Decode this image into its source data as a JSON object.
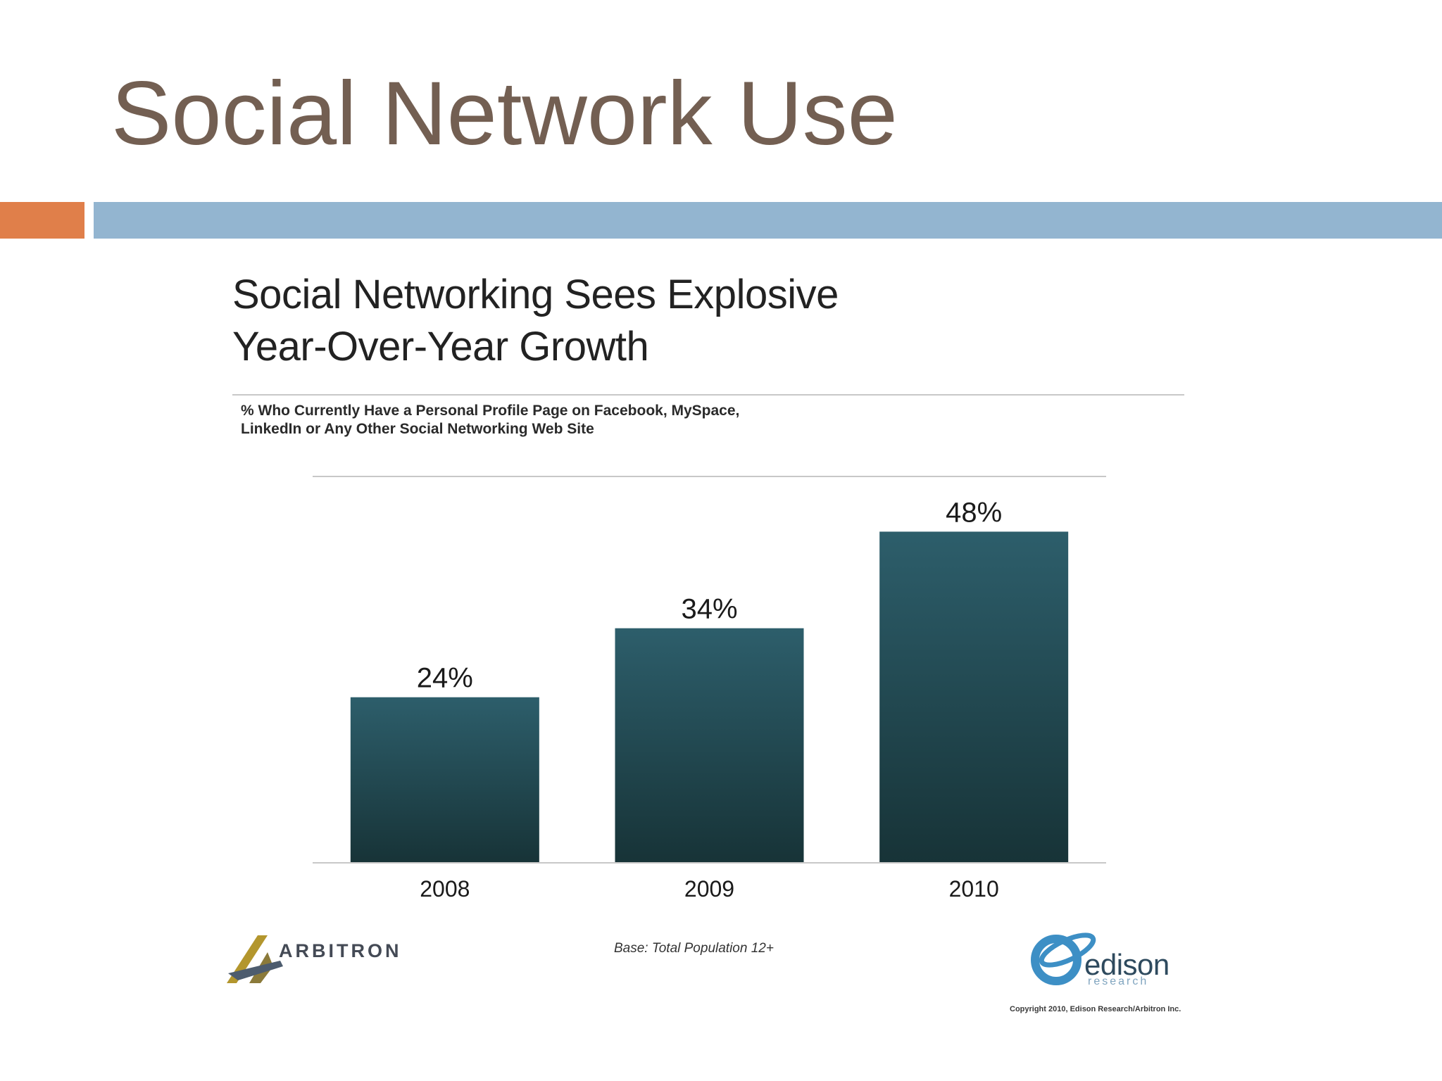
{
  "slide": {
    "title": "Social Network Use",
    "accent_colors": {
      "title": "#735f52",
      "bar_left": "#e07f4a",
      "bar_right": "#93b5d0"
    }
  },
  "chart_data": {
    "type": "bar",
    "title": "Social Networking Sees Explosive Year-Over-Year Growth",
    "title_lines": [
      "Social Networking Sees Explosive",
      "Year-Over-Year Growth"
    ],
    "subtitle_lines": [
      "% Who Currently Have a Personal Profile Page on Facebook, MySpace,",
      "LinkedIn or Any Other Social Networking Web Site"
    ],
    "categories": [
      "2008",
      "2009",
      "2010"
    ],
    "values": [
      24,
      34,
      48
    ],
    "data_labels": [
      "24%",
      "34%",
      "48%"
    ],
    "xlabel": "",
    "ylabel": "",
    "ylim": [
      0,
      56
    ],
    "grid": false,
    "bar_color_top": "#2d5e6b",
    "bar_color_bottom": "#173337"
  },
  "footer": {
    "base_note": "Base: Total Population 12+",
    "arbitron_logo_text": "ARBITRON",
    "edison_logo_text": "edison",
    "edison_logo_sub": "research",
    "copyright": "Copyright 2010, Edison Research/Arbitron Inc."
  }
}
